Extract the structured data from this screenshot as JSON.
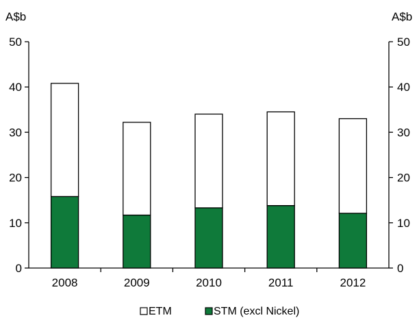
{
  "chart_data": {
    "type": "bar",
    "stacked": true,
    "categories": [
      "2008",
      "2009",
      "2010",
      "2011",
      "2012"
    ],
    "series": [
      {
        "name": "STM (excl Nickel)",
        "values": [
          15.8,
          11.7,
          13.3,
          13.8,
          12.1
        ],
        "color": "#0f7a3a"
      },
      {
        "name": "ETM",
        "values": [
          25.0,
          20.5,
          20.7,
          20.7,
          20.9
        ],
        "color": "#ffffff"
      }
    ],
    "totals": [
      40.8,
      32.2,
      34.0,
      34.5,
      33.0
    ],
    "ylim": [
      0,
      50
    ],
    "yticks": [
      0,
      10,
      20,
      30,
      40,
      50
    ],
    "y_unit_left": "A$b",
    "y_unit_right": "A$b",
    "dual_axis": true,
    "grid": false,
    "legend": {
      "position": "bottom",
      "items": [
        {
          "label": "ETM",
          "swatch": "#ffffff"
        },
        {
          "label": "STM (excl Nickel)",
          "swatch": "#0f7a3a"
        }
      ]
    }
  }
}
